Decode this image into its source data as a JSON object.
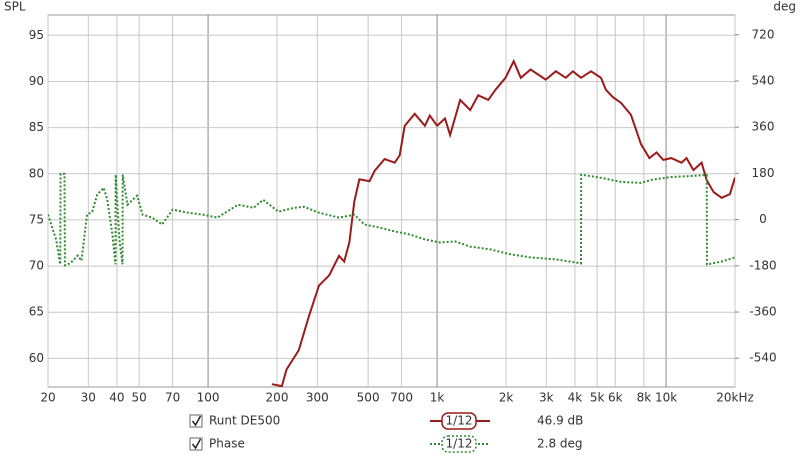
{
  "chart_data": {
    "type": "line",
    "y_label": "SPL",
    "y2_label": "deg",
    "log_x": true,
    "grid": true,
    "xlim": [
      20,
      20000
    ],
    "xticks": [
      20,
      30,
      40,
      50,
      70,
      100,
      200,
      300,
      500,
      700,
      {
        "value": 1000,
        "label": "1k"
      },
      {
        "value": 2000,
        "label": "2k"
      },
      {
        "value": 3000,
        "label": "3k"
      },
      {
        "value": 4000,
        "label": "4k"
      },
      {
        "value": 5000,
        "label": "5k"
      },
      {
        "value": 6000,
        "label": "6k"
      },
      {
        "value": 8000,
        "label": "8k"
      },
      {
        "value": 10000,
        "label": "10k"
      },
      {
        "value": 20000,
        "label": "20kHz"
      }
    ],
    "ylim": [
      56.9,
      97.2
    ],
    "yticks": [
      60,
      65,
      70,
      75,
      80,
      85,
      90,
      95
    ],
    "y2lim": [
      -652,
      797
    ],
    "y2ticks": [
      -540,
      -360,
      -180,
      0,
      180,
      360,
      540,
      720
    ],
    "series": [
      {
        "name": "Runt DE500",
        "color": "#9b1a1a",
        "style": "solid",
        "smoothing": "1/12",
        "readout": "46.9 dB",
        "x": [
          190,
          210,
          220,
          249,
          276,
          305,
          338,
          373,
          393,
          414,
          435,
          458,
          507,
          533,
          590,
          653,
          687,
          722,
          799,
          885,
          930,
          1000,
          1083,
          1140,
          1262,
          1396,
          1513,
          1674,
          1797,
          1990,
          2160,
          2320,
          2560,
          2980,
          3300,
          3650,
          3920,
          4250,
          4700,
          5200,
          5460,
          5860,
          6350,
          7020,
          7770,
          8460,
          9080,
          9730,
          10540,
          11680,
          12280,
          13170,
          14300,
          15040,
          16150,
          17500,
          19000,
          20000
        ],
        "values": [
          57.2,
          57.0,
          58.8,
          60.9,
          64.6,
          67.9,
          69.0,
          71.1,
          70.5,
          72.6,
          77.0,
          79.4,
          79.2,
          80.3,
          81.6,
          81.2,
          82.0,
          85.2,
          86.5,
          85.2,
          86.3,
          85.2,
          86.0,
          84.2,
          88.0,
          86.9,
          88.5,
          88.0,
          89.1,
          90.4,
          92.2,
          90.4,
          91.3,
          90.2,
          91.1,
          90.4,
          91.1,
          90.4,
          91.1,
          90.4,
          89.1,
          88.3,
          87.7,
          86.4,
          83.2,
          81.7,
          82.3,
          81.5,
          81.7,
          81.2,
          81.7,
          80.4,
          81.2,
          79.3,
          78.0,
          77.4,
          77.8,
          79.6
        ]
      },
      {
        "name": "Phase",
        "color": "#2e8b2e",
        "style": "dotted",
        "axis": "y2",
        "smoothing": "1/12",
        "readout": "2.8 deg",
        "x": [
          20,
          21.7,
          22.6,
          22.7,
          23.6,
          23.7,
          25,
          27,
          28,
          29.6,
          31.2,
          32.8,
          35,
          36.3,
          38.2,
          39.4,
          39.5,
          41,
          42.3,
          42.4,
          44.5,
          46.8,
          49,
          51.8,
          57,
          63,
          70,
          81.7,
          95,
          110,
          135,
          158,
          174,
          203,
          237,
          262,
          305,
          373,
          435,
          482,
          560,
          653,
          760,
          885,
          1030,
          1200,
          1396,
          1708,
          2090,
          2560,
          3300,
          4250,
          4260,
          5200,
          6350,
          7770,
          8650,
          10540,
          12900,
          15040,
          15100,
          17500,
          20000
        ],
        "values": [
          19,
          -77,
          -174,
          178,
          178,
          -178,
          -170,
          -140,
          -160,
          19,
          31,
          97,
          124,
          77,
          -58,
          -174,
          175,
          -77,
          -174,
          175,
          58,
          77,
          93,
          19,
          8,
          -19,
          39,
          27,
          19,
          8,
          58,
          46,
          77,
          31,
          46,
          50,
          27,
          8,
          19,
          -19,
          -31,
          -46,
          -58,
          -77,
          -89,
          -85,
          -105,
          -116,
          -135,
          -147,
          -155,
          -170,
          175,
          163,
          147,
          143,
          155,
          166,
          170,
          174,
          -175,
          -163,
          -147
        ]
      }
    ]
  }
}
